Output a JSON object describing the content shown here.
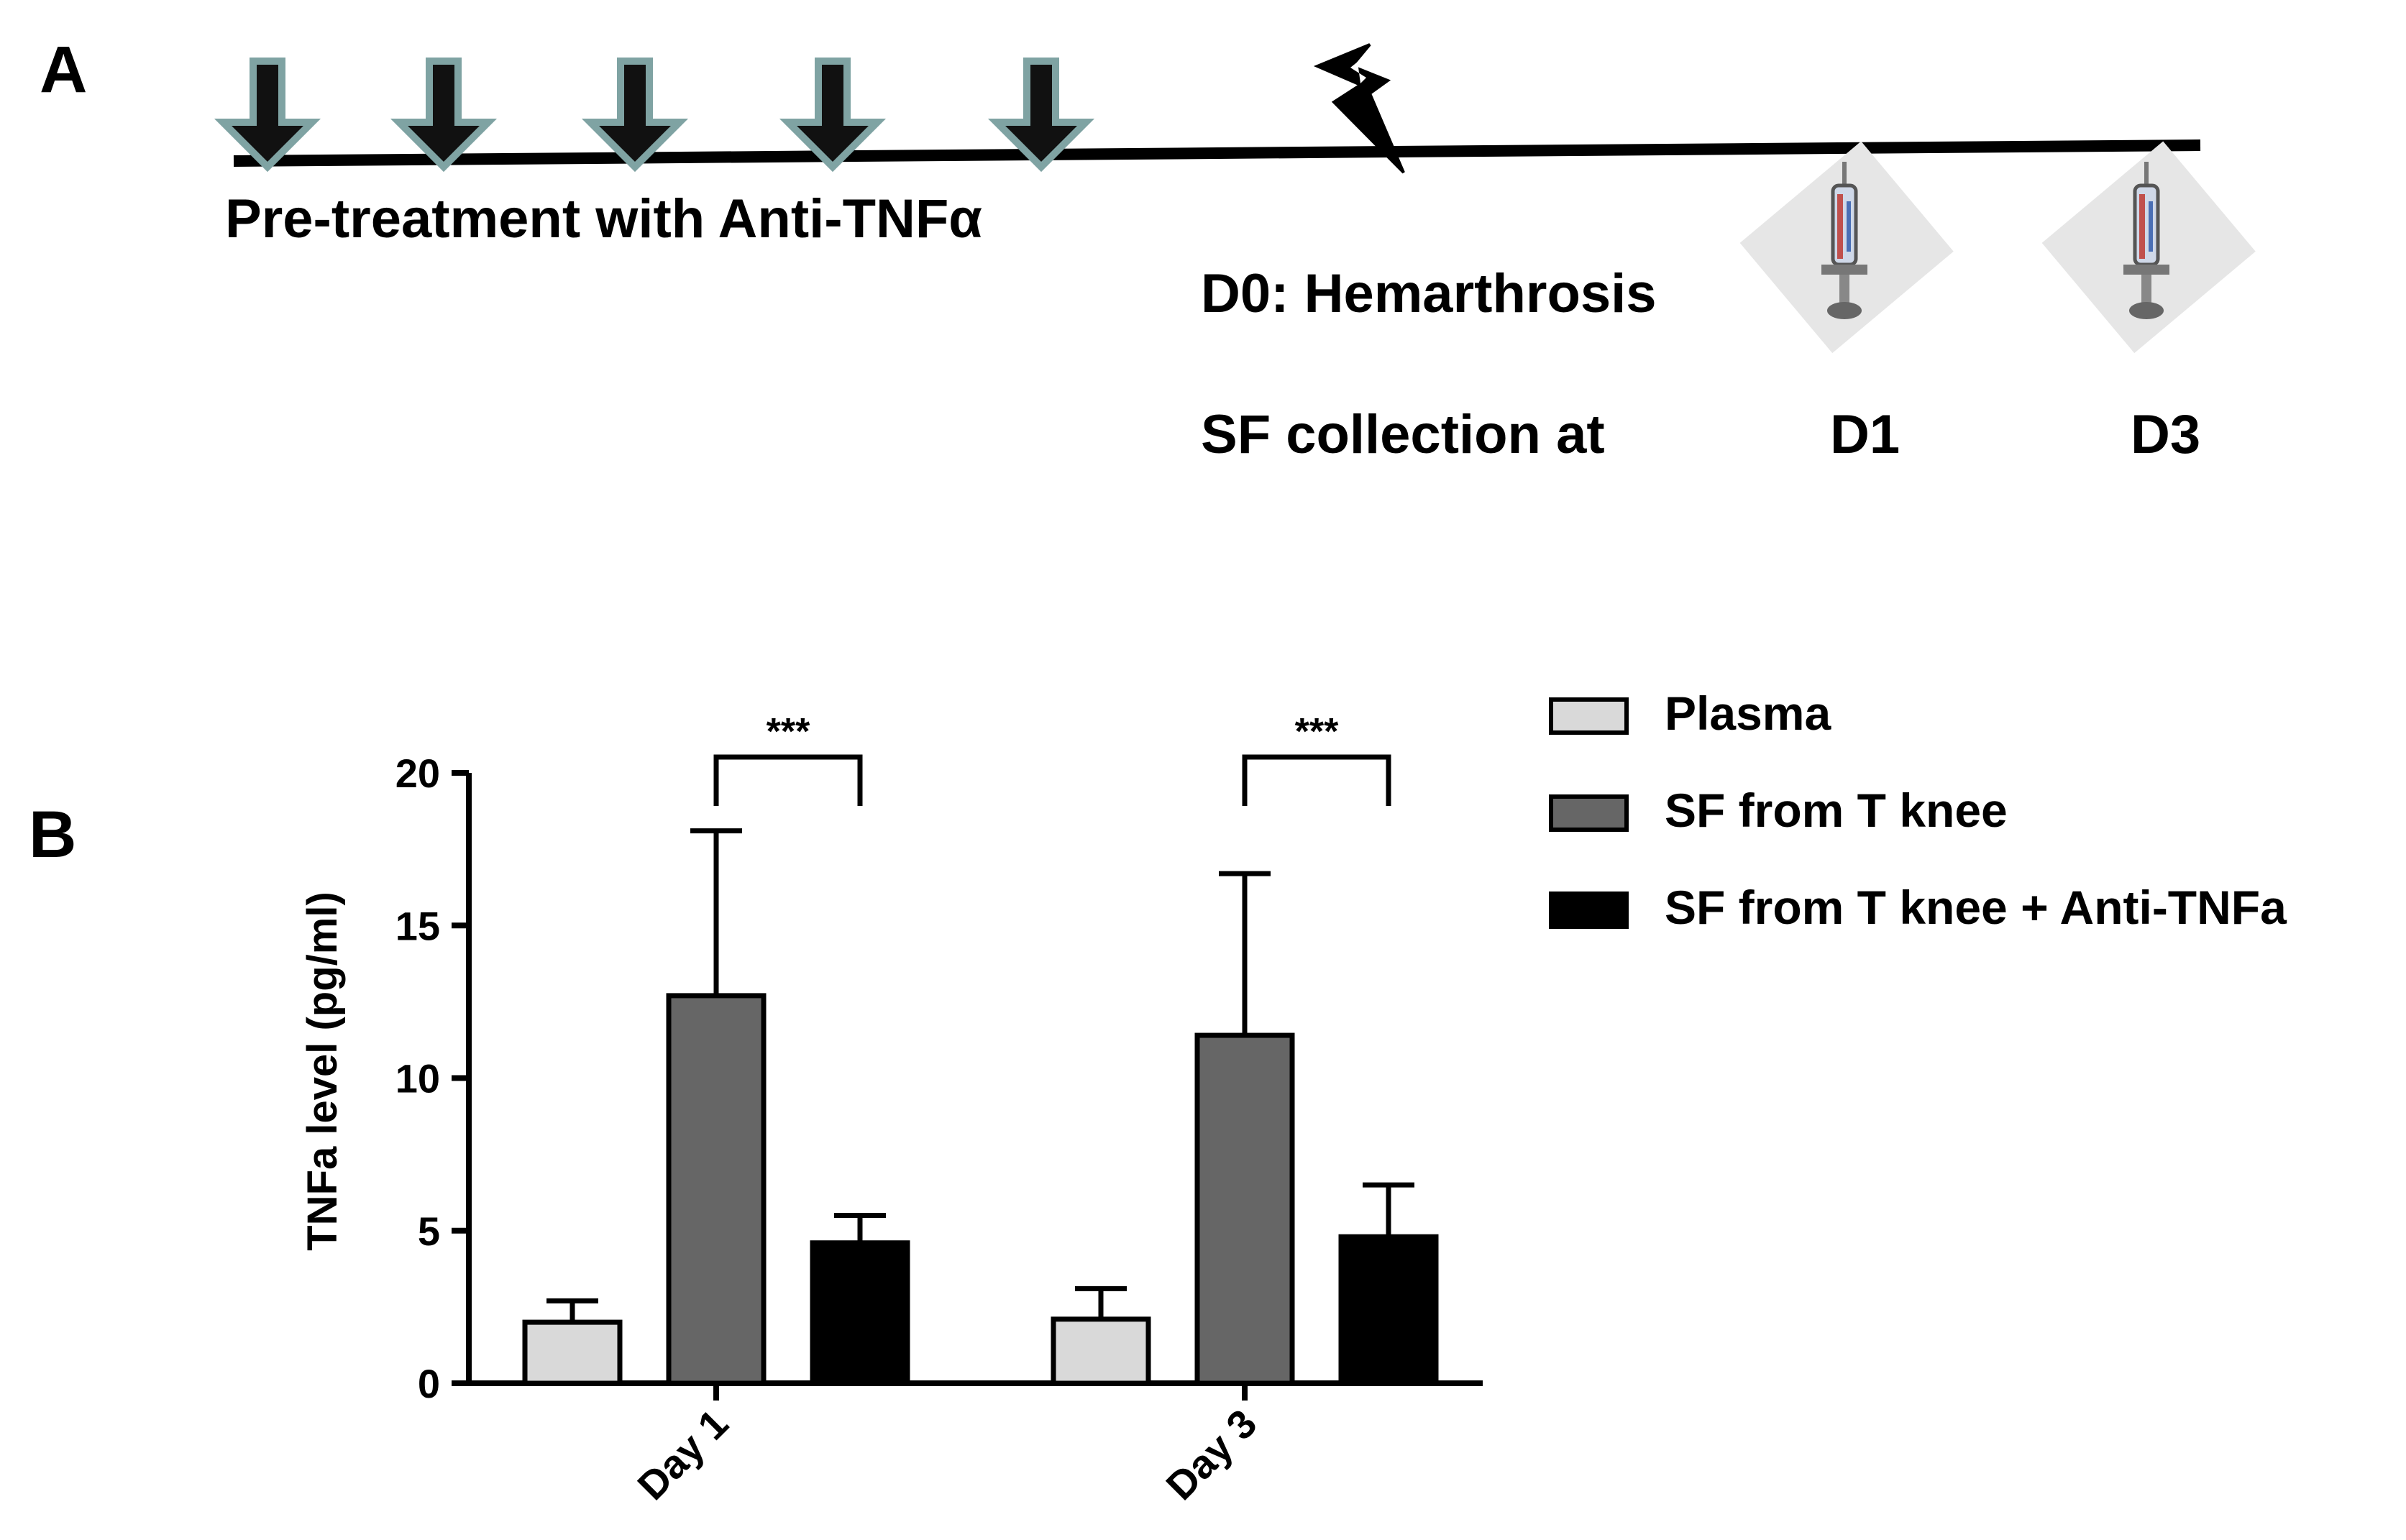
{
  "panel_a": {
    "label": "A",
    "pretreatment_text": "Pre-treatment with Anti-TNFα",
    "injury_text": "D0: Hemarthrosis",
    "collection_text": "SF collection at",
    "day1_text": "D1",
    "day3_text": "D3",
    "arrow_count": 5,
    "icons": [
      "down-arrow-icon",
      "lightning-bolt-icon",
      "syringe-icon"
    ],
    "arrow_colors": {
      "fill": "#111111",
      "outline": "#7fa3a3"
    }
  },
  "panel_b": {
    "label": "B"
  },
  "chart_data": {
    "type": "bar",
    "title": "",
    "xlabel": "",
    "ylabel": "TNFa level (pg/ml)",
    "ylim": [
      0,
      20
    ],
    "yticks": [
      0,
      5,
      10,
      15,
      20
    ],
    "categories": [
      "Day 1",
      "Day 3"
    ],
    "series": [
      {
        "name": "Plasma",
        "color": "#d9d9d9",
        "values": [
          2.0,
          2.1
        ],
        "errors": [
          0.7,
          1.0
        ]
      },
      {
        "name": "SF from T knee",
        "color": "#666666",
        "values": [
          12.7,
          11.4
        ],
        "errors": [
          5.4,
          5.3
        ]
      },
      {
        "name": "SF from T knee + Anti-TNFa",
        "color": "#000000",
        "values": [
          4.6,
          4.8
        ],
        "errors": [
          0.9,
          1.7
        ]
      }
    ],
    "significance": [
      {
        "category": "Day 1",
        "from_series": 1,
        "to_series": 2,
        "label": "***"
      },
      {
        "category": "Day 3",
        "from_series": 1,
        "to_series": 2,
        "label": "***"
      }
    ],
    "grid": false,
    "legend_position": "top-right"
  }
}
